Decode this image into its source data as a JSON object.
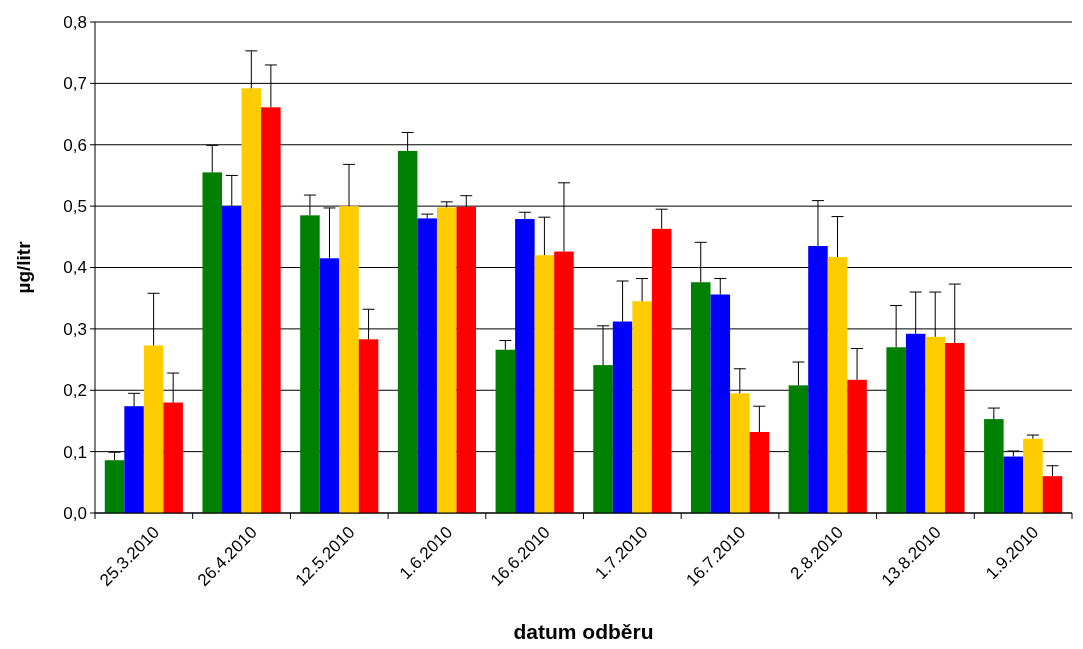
{
  "chart_data": {
    "type": "bar",
    "xlabel": "datum odběru",
    "ylabel": "µg/litr",
    "categories": [
      "25.3.2010",
      "26.4.2010",
      "12.5.2010",
      "1.6.2010",
      "16.6.2010",
      "1.7.2010",
      "16.7.2010",
      "2.8.2010",
      "13.8.2010",
      "1.9.2010"
    ],
    "series": [
      {
        "color": "#008000",
        "values": [
          0.086,
          0.555,
          0.485,
          0.59,
          0.266,
          0.241,
          0.376,
          0.208,
          0.27,
          0.153
        ],
        "errors": [
          [
            0.086,
            0.099
          ],
          [
            0.555,
            0.599
          ],
          [
            0.485,
            0.518
          ],
          [
            0.59,
            0.62
          ],
          [
            0.266,
            0.281
          ],
          [
            0.241,
            0.305
          ],
          [
            0.376,
            0.441
          ],
          [
            0.208,
            0.246
          ],
          [
            0.27,
            0.338
          ],
          [
            0.153,
            0.171
          ]
        ]
      },
      {
        "color": "#0000ff",
        "values": [
          0.174,
          0.5,
          0.415,
          0.48,
          0.479,
          0.312,
          0.356,
          0.435,
          0.292,
          0.092
        ],
        "errors": [
          [
            0.174,
            0.195
          ],
          [
            0.5,
            0.55
          ],
          [
            0.415,
            0.497
          ],
          [
            0.48,
            0.487
          ],
          [
            0.479,
            0.49
          ],
          [
            0.312,
            0.378
          ],
          [
            0.356,
            0.382
          ],
          [
            0.435,
            0.509
          ],
          [
            0.292,
            0.36
          ],
          [
            0.092,
            0.101
          ]
        ]
      },
      {
        "color": "#ffcc00",
        "values": [
          0.273,
          0.692,
          0.5,
          0.498,
          0.42,
          0.345,
          0.195,
          0.417,
          0.287,
          0.121
        ],
        "errors": [
          [
            0.273,
            0.358
          ],
          [
            0.692,
            0.753
          ],
          [
            0.5,
            0.568
          ],
          [
            0.498,
            0.507
          ],
          [
            0.42,
            0.482
          ],
          [
            0.345,
            0.382
          ],
          [
            0.195,
            0.235
          ],
          [
            0.417,
            0.483
          ],
          [
            0.287,
            0.36
          ],
          [
            0.121,
            0.127
          ]
        ]
      },
      {
        "color": "#ff0000",
        "values": [
          0.18,
          0.661,
          0.283,
          0.499,
          0.426,
          0.463,
          0.132,
          0.217,
          0.277,
          0.06
        ],
        "errors": [
          [
            0.18,
            0.228
          ],
          [
            0.661,
            0.73
          ],
          [
            0.283,
            0.332
          ],
          [
            0.499,
            0.517
          ],
          [
            0.426,
            0.538
          ],
          [
            0.463,
            0.495
          ],
          [
            0.132,
            0.174
          ],
          [
            0.217,
            0.268
          ],
          [
            0.277,
            0.373
          ],
          [
            0.06,
            0.077
          ]
        ]
      }
    ],
    "ylim": [
      0,
      0.8
    ],
    "yticks": [
      {
        "value": 0,
        "label": "0,0"
      },
      {
        "value": 0.1,
        "label": "0,1"
      },
      {
        "value": 0.2,
        "label": "0,2"
      },
      {
        "value": 0.3,
        "label": "0,3"
      },
      {
        "value": 0.4,
        "label": "0,4"
      },
      {
        "value": 0.5,
        "label": "0,5"
      },
      {
        "value": 0.6,
        "label": "0,6"
      },
      {
        "value": 0.7,
        "label": "0,7"
      },
      {
        "value": 0.8,
        "label": "0,8"
      }
    ],
    "grid": "y"
  }
}
